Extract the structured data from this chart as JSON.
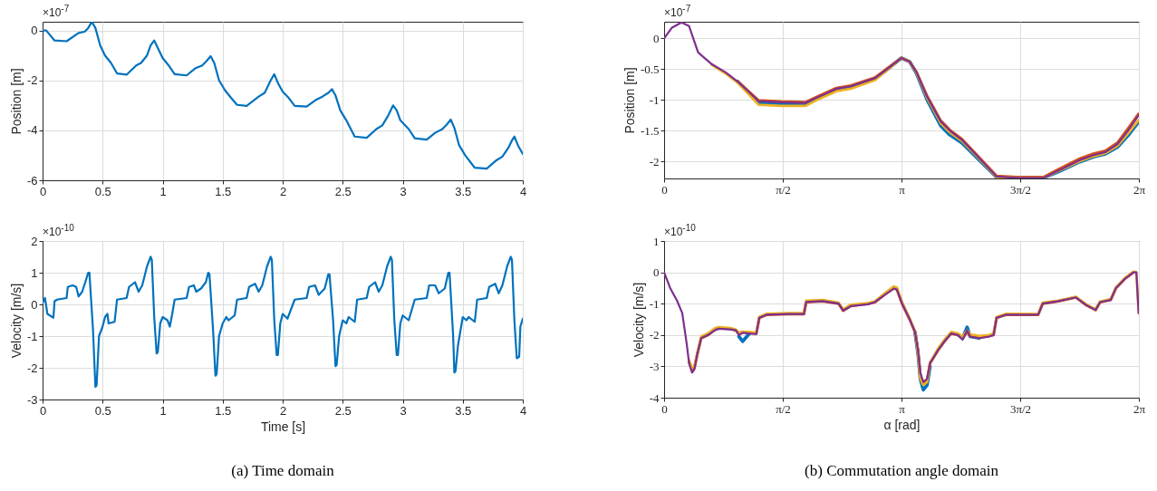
{
  "chart_data": [
    {
      "type": "line",
      "ylabel": "Position [m]",
      "annotations": [
        "×10$^{-7}$"
      ],
      "xlim": [
        0,
        4
      ],
      "xticks": [
        0,
        0.5,
        1,
        1.5,
        2,
        2.5,
        3,
        3.5,
        4
      ],
      "ylim": [
        -6,
        0.35
      ],
      "yticks": [
        -6,
        -4,
        -2,
        0
      ],
      "grid": true,
      "x": [
        0,
        0.03,
        0.1,
        0.2,
        0.3,
        0.35,
        0.38,
        0.41,
        0.44,
        0.48,
        0.52,
        0.57,
        0.62,
        0.7,
        0.78,
        0.82,
        0.87,
        0.9,
        0.93,
        0.96,
        1.0,
        1.05,
        1.1,
        1.2,
        1.27,
        1.33,
        1.37,
        1.4,
        1.43,
        1.47,
        1.52,
        1.57,
        1.62,
        1.7,
        1.8,
        1.85,
        1.9,
        1.93,
        1.96,
        2.0,
        2.05,
        2.1,
        2.2,
        2.27,
        2.33,
        2.38,
        2.41,
        2.44,
        2.48,
        2.53,
        2.6,
        2.7,
        2.78,
        2.83,
        2.88,
        2.92,
        2.95,
        2.98,
        3.05,
        3.1,
        3.2,
        3.27,
        3.33,
        3.37,
        3.4,
        3.43,
        3.47,
        3.52,
        3.6,
        3.7,
        3.78,
        3.83,
        3.88,
        3.91,
        3.93,
        3.96,
        4.0
      ],
      "series": [
        {
          "color": "#0072bd",
          "values": [
            0,
            0,
            -0.4,
            -0.43,
            -0.1,
            -0.05,
            0.1,
            0.35,
            0.1,
            -0.6,
            -1.0,
            -1.3,
            -1.72,
            -1.77,
            -1.4,
            -1.3,
            -1.0,
            -0.6,
            -0.4,
            -0.7,
            -1.1,
            -1.4,
            -1.75,
            -1.8,
            -1.52,
            -1.4,
            -1.2,
            -1.03,
            -1.3,
            -2.0,
            -2.4,
            -2.7,
            -2.98,
            -3.02,
            -2.65,
            -2.5,
            -2.0,
            -1.75,
            -2.1,
            -2.45,
            -2.7,
            -3.02,
            -3.05,
            -2.8,
            -2.65,
            -2.5,
            -2.35,
            -2.6,
            -3.2,
            -3.6,
            -4.25,
            -4.3,
            -3.95,
            -3.8,
            -3.4,
            -3.0,
            -3.2,
            -3.6,
            -3.95,
            -4.32,
            -4.37,
            -4.1,
            -3.95,
            -3.75,
            -3.57,
            -3.9,
            -4.6,
            -5.0,
            -5.5,
            -5.53,
            -5.2,
            -5.05,
            -4.7,
            -4.4,
            -4.25,
            -4.6,
            -4.95
          ]
        }
      ]
    },
    {
      "type": "line",
      "ylabel": "Position [m]",
      "annotations": [
        "×10$^{-7}$"
      ],
      "xlim": [
        0,
        6.2832
      ],
      "xticks": [
        0,
        {
          "value": 1.5708,
          "label": "π/2"
        },
        {
          "value": 3.1416,
          "label": "π"
        },
        {
          "value": 4.7124,
          "label": "3π/2"
        },
        {
          "value": 6.2832,
          "label": "2π"
        }
      ],
      "ylim": [
        -2.28,
        0.27
      ],
      "yticks": [
        -2,
        -1.5,
        -1,
        -0.5,
        0
      ],
      "grid": true,
      "x": [
        0,
        0.1,
        0.23,
        0.33,
        0.45,
        0.63,
        0.81,
        0.97,
        1.25,
        1.55,
        1.87,
        2.01,
        2.28,
        2.47,
        2.79,
        2.93,
        3.14,
        3.25,
        3.34,
        3.48,
        3.66,
        3.78,
        3.94,
        4.17,
        4.4,
        4.67,
        5.02,
        5.22,
        5.5,
        5.68,
        5.84,
        6.0,
        6.14,
        6.28
      ],
      "series": [
        {
          "color": "#0072bd",
          "values": [
            null,
            null,
            null,
            null,
            null,
            null,
            null,
            -0.7,
            -1.04,
            -1.07,
            -1.08,
            -0.99,
            -0.83,
            -0.79,
            -0.66,
            -0.53,
            -0.32,
            -0.38,
            -0.57,
            -1.0,
            -1.42,
            -1.57,
            -1.7,
            -1.98,
            -2.26,
            -2.27,
            -2.27,
            -2.17,
            -2.01,
            -1.93,
            -1.88,
            -1.77,
            -1.58,
            -1.36
          ]
        },
        {
          "color": "#d95319",
          "values": [
            null,
            null,
            null,
            null,
            null,
            null,
            null,
            -0.7,
            -1.01,
            -1.03,
            -1.04,
            -0.96,
            -0.81,
            -0.77,
            -0.64,
            -0.51,
            -0.32,
            -0.38,
            -0.55,
            -0.94,
            -1.34,
            -1.49,
            -1.64,
            -1.94,
            -2.24,
            -2.26,
            -2.26,
            -2.13,
            -1.96,
            -1.88,
            -1.83,
            -1.7,
            -1.47,
            -1.23
          ]
        },
        {
          "color": "#edb120",
          "values": [
            null,
            null,
            null,
            null,
            null,
            -0.43,
            -0.57,
            -0.72,
            -1.08,
            -1.1,
            -1.1,
            -1.01,
            -0.86,
            -0.82,
            -0.68,
            -0.54,
            -0.32,
            -0.38,
            -0.56,
            -0.97,
            -1.38,
            -1.53,
            -1.67,
            -1.96,
            -2.26,
            -2.27,
            -2.27,
            -2.16,
            -2.0,
            -1.92,
            -1.87,
            -1.75,
            -1.55,
            -1.33
          ]
        },
        {
          "color": "#7e2f8e",
          "values": [
            0,
            0.17,
            0.26,
            0.2,
            -0.23,
            -0.42,
            -0.55,
            -0.7,
            -1.02,
            -1.04,
            -1.05,
            -0.97,
            -0.82,
            -0.78,
            -0.65,
            -0.52,
            -0.32,
            -0.38,
            -0.55,
            -0.95,
            -1.35,
            -1.5,
            -1.65,
            -1.95,
            -2.25,
            -2.27,
            -2.27,
            -2.15,
            -1.98,
            -1.9,
            -1.85,
            -1.72,
            -1.5,
            -1.25
          ]
        }
      ]
    },
    {
      "type": "line",
      "xlabel": "Time [s]",
      "ylabel": "Velocity [m/s]",
      "annotations": [
        "×10$^{-10}$",
        "(a) Time domain"
      ],
      "xlim": [
        0,
        4
      ],
      "xticks": [
        0,
        0.5,
        1,
        1.5,
        2,
        2.5,
        3,
        3.5,
        4
      ],
      "ylim": [
        -3,
        2
      ],
      "yticks": [
        -3,
        -2,
        -1,
        0,
        1,
        2
      ],
      "grid": true,
      "x": [
        0,
        0.02,
        0.04,
        0.09,
        0.1,
        0.12,
        0.2,
        0.21,
        0.25,
        0.28,
        0.3,
        0.33,
        0.36,
        0.38,
        0.39,
        0.42,
        0.44,
        0.45,
        0.47,
        0.5,
        0.52,
        0.54,
        0.55,
        0.6,
        0.62,
        0.7,
        0.72,
        0.77,
        0.8,
        0.83,
        0.87,
        0.9,
        0.91,
        0.93,
        0.95,
        0.96,
        0.98,
        1.0,
        1.04,
        1.06,
        1.08,
        1.1,
        1.2,
        1.22,
        1.26,
        1.28,
        1.32,
        1.36,
        1.38,
        1.39,
        1.42,
        1.44,
        1.45,
        1.47,
        1.5,
        1.53,
        1.55,
        1.6,
        1.62,
        1.7,
        1.72,
        1.77,
        1.8,
        1.83,
        1.87,
        1.9,
        1.91,
        1.93,
        1.95,
        1.96,
        1.98,
        2.0,
        2.04,
        2.1,
        2.2,
        2.22,
        2.27,
        2.3,
        2.35,
        2.38,
        2.39,
        2.42,
        2.44,
        2.45,
        2.47,
        2.5,
        2.53,
        2.55,
        2.6,
        2.62,
        2.7,
        2.72,
        2.77,
        2.8,
        2.83,
        2.87,
        2.9,
        2.91,
        2.93,
        2.95,
        2.96,
        2.98,
        3.0,
        3.05,
        3.1,
        3.2,
        3.22,
        3.27,
        3.3,
        3.35,
        3.38,
        3.39,
        3.42,
        3.43,
        3.44,
        3.46,
        3.5,
        3.53,
        3.55,
        3.6,
        3.62,
        3.7,
        3.72,
        3.77,
        3.8,
        3.83,
        3.87,
        3.9,
        3.91,
        3.93,
        3.95,
        3.97,
        3.98,
        4.0
      ],
      "series": [
        {
          "color": "#0072bd",
          "values": [
            0.05,
            0.2,
            -0.3,
            -0.42,
            0.1,
            0.15,
            0.2,
            0.55,
            0.6,
            0.55,
            0.25,
            0.4,
            0.75,
            1.0,
            1.0,
            -0.8,
            -2.6,
            -2.55,
            -1.0,
            -0.7,
            -0.4,
            -0.3,
            -0.6,
            -0.55,
            0.15,
            0.2,
            0.55,
            0.7,
            0.4,
            0.6,
            1.2,
            1.5,
            1.4,
            -0.4,
            -1.55,
            -1.5,
            -0.6,
            -0.4,
            -0.5,
            -0.7,
            -0.3,
            0.15,
            0.2,
            0.55,
            0.6,
            0.4,
            0.5,
            0.7,
            1.0,
            0.95,
            -0.8,
            -2.25,
            -2.2,
            -1.0,
            -0.6,
            -0.4,
            -0.5,
            -0.35,
            0.15,
            0.2,
            0.55,
            0.65,
            0.4,
            0.6,
            1.2,
            1.5,
            1.4,
            -0.5,
            -1.6,
            -1.6,
            -0.6,
            -0.3,
            -0.45,
            0.15,
            0.2,
            0.55,
            0.6,
            0.3,
            0.5,
            0.95,
            0.95,
            -0.5,
            -1.95,
            -1.9,
            -1.0,
            -0.5,
            -0.6,
            -0.4,
            -0.55,
            0.15,
            0.2,
            0.55,
            0.7,
            0.4,
            0.6,
            1.2,
            1.5,
            1.4,
            -0.5,
            -1.6,
            -1.6,
            -0.6,
            -0.35,
            -0.5,
            0.15,
            0.2,
            0.6,
            0.6,
            0.35,
            0.5,
            1.0,
            1.0,
            -1.0,
            -2.15,
            -2.1,
            -1.3,
            -0.4,
            -0.5,
            -0.4,
            -0.55,
            0.15,
            0.2,
            0.55,
            0.65,
            0.35,
            0.6,
            1.2,
            1.5,
            1.4,
            -0.5,
            -1.7,
            -1.65,
            -0.7,
            -0.45
          ]
        }
      ]
    },
    {
      "type": "line",
      "xlabel": "α [rad]",
      "ylabel": "Velocity [m/s]",
      "annotations": [
        "×10$^{-10}$",
        "(b) Commutation angle domain"
      ],
      "xlim": [
        0,
        6.2832
      ],
      "xticks": [
        0,
        {
          "value": 1.5708,
          "label": "π/2"
        },
        {
          "value": 3.1416,
          "label": "π"
        },
        {
          "value": 4.7124,
          "label": "3π/2"
        },
        {
          "value": 6.2832,
          "label": "2π"
        }
      ],
      "ylim": [
        -4,
        1
      ],
      "yticks": [
        -4,
        -3,
        -2,
        -1,
        0,
        1
      ],
      "grid": true,
      "x": [
        0,
        0.08,
        0.17,
        0.24,
        0.3,
        0.33,
        0.37,
        0.4,
        0.44,
        0.49,
        0.58,
        0.67,
        0.72,
        0.88,
        0.95,
        0.99,
        1.04,
        1.13,
        1.22,
        1.26,
        1.36,
        1.64,
        1.85,
        1.88,
        2.1,
        2.31,
        2.37,
        2.47,
        2.7,
        2.79,
        2.93,
        3.04,
        3.08,
        3.15,
        3.25,
        3.32,
        3.36,
        3.39,
        3.43,
        3.48,
        3.52,
        3.62,
        3.71,
        3.8,
        3.89,
        3.95,
        4.01,
        4.05,
        4.17,
        4.3,
        4.36,
        4.4,
        4.53,
        4.95,
        5.01,
        5.22,
        5.45,
        5.59,
        5.71,
        5.77,
        5.91,
        5.98,
        6.1,
        6.21,
        6.25,
        6.28
      ],
      "series": [
        {
          "color": "#0072bd",
          "values": [
            null,
            null,
            null,
            null,
            null,
            null,
            null,
            null,
            null,
            null,
            null,
            null,
            null,
            null,
            null,
            -2.05,
            -2.2,
            -1.95,
            null,
            null,
            null,
            null,
            null,
            null,
            null,
            null,
            null,
            null,
            null,
            null,
            null,
            null,
            null,
            null,
            null,
            -1.9,
            -2.6,
            -3.4,
            -3.75,
            -3.6,
            -3.0,
            null,
            null,
            null,
            -2.0,
            -2.1,
            -1.75,
            -2.05,
            -2.1,
            null,
            null,
            null,
            null,
            null,
            null,
            null,
            null,
            null,
            null,
            null,
            null,
            null,
            null,
            null,
            null,
            null
          ]
        },
        {
          "color": "#d95319",
          "values": [
            null,
            null,
            null,
            null,
            null,
            -2.85,
            -3.1,
            -3.05,
            -2.6,
            -2.1,
            -2.0,
            -1.83,
            -1.78,
            -1.8,
            -1.85,
            -1.95,
            -1.9,
            -1.93,
            -1.95,
            -1.45,
            -1.35,
            -1.33,
            -1.33,
            -0.95,
            -0.92,
            -1.0,
            -1.22,
            -1.07,
            -1.0,
            -0.95,
            -0.68,
            -0.5,
            -0.53,
            -1.0,
            -1.5,
            -1.9,
            -2.5,
            -3.3,
            -3.55,
            -3.45,
            -2.9,
            -2.5,
            -2.2,
            -1.95,
            -2.0,
            -2.1,
            -1.9,
            -2.03,
            -2.08,
            -2.03,
            -2.0,
            -1.45,
            -1.35,
            -1.35,
            -1.0,
            -0.92,
            -0.8,
            -1.05,
            -1.2,
            -0.95,
            -0.88,
            -0.5,
            -0.2,
            0,
            null,
            null
          ]
        },
        {
          "color": "#edb120",
          "values": [
            null,
            null,
            null,
            null,
            null,
            -2.8,
            -3.05,
            -3.0,
            -2.6,
            -2.05,
            -1.95,
            -1.78,
            -1.75,
            -1.78,
            -1.83,
            -1.93,
            -1.9,
            -1.9,
            -1.93,
            -1.42,
            -1.32,
            -1.3,
            -1.3,
            -0.9,
            -0.88,
            -0.97,
            -1.18,
            -1.03,
            -0.98,
            -0.92,
            -0.65,
            -0.45,
            -0.48,
            -0.95,
            -1.48,
            -1.88,
            -2.6,
            -3.4,
            -3.6,
            -3.5,
            -2.9,
            -2.45,
            -2.15,
            -1.9,
            -1.95,
            -2.05,
            -1.85,
            -1.98,
            -2.03,
            -2.0,
            -1.95,
            -1.42,
            -1.32,
            -1.33,
            -0.97,
            -0.9,
            -0.78,
            -1.03,
            -1.18,
            -0.93,
            -0.85,
            -0.48,
            -0.18,
            0.02,
            0,
            -1.3
          ]
        },
        {
          "color": "#7e2f8e",
          "values": [
            0,
            -0.5,
            -0.9,
            -1.3,
            -2.3,
            -2.9,
            -3.2,
            -3.1,
            -2.6,
            -2.1,
            -2.0,
            -1.85,
            -1.8,
            -1.82,
            -1.85,
            -2.0,
            -1.93,
            -1.95,
            -1.97,
            -1.45,
            -1.35,
            -1.33,
            -1.33,
            -0.95,
            -0.92,
            -1.0,
            -1.22,
            -1.08,
            -1.02,
            -0.95,
            -0.7,
            -0.52,
            -0.55,
            -1.0,
            -1.5,
            -1.9,
            -2.5,
            -3.2,
            -3.5,
            -3.4,
            -2.9,
            -2.5,
            -2.2,
            -1.95,
            -2.0,
            -2.15,
            -1.85,
            -2.05,
            -2.1,
            -2.05,
            -2.0,
            -1.45,
            -1.35,
            -1.35,
            -1.0,
            -0.92,
            -0.8,
            -1.05,
            -1.2,
            -0.95,
            -0.88,
            -0.5,
            -0.2,
            0,
            0,
            -1.3
          ]
        }
      ]
    }
  ]
}
